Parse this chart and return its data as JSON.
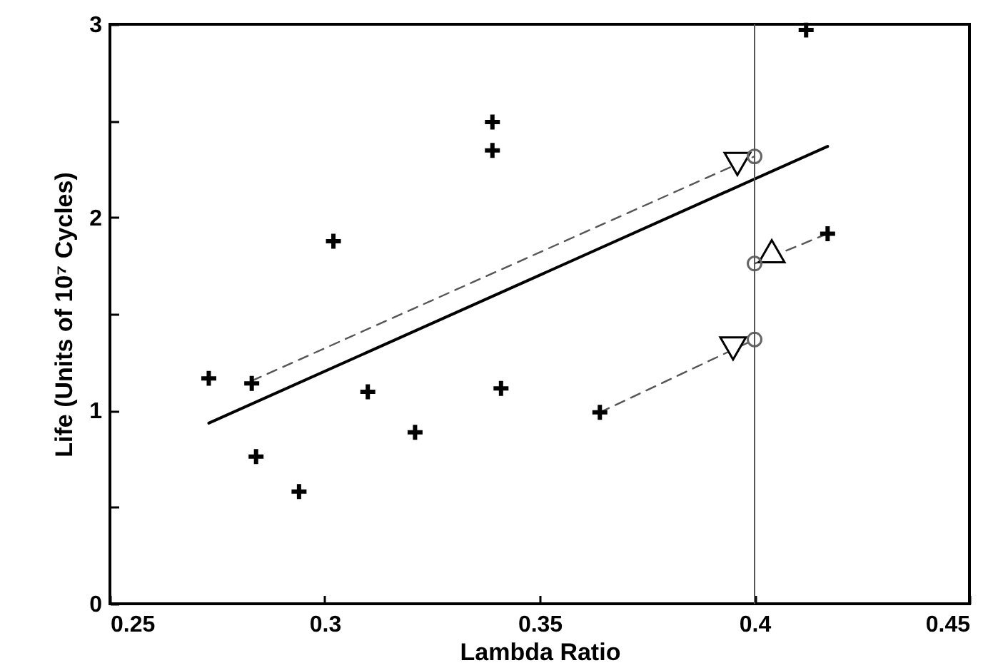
{
  "chart_data": {
    "type": "scatter",
    "xlabel": "Lambda Ratio",
    "ylabel": "Life (Units of 10⁷ Cycles)",
    "xlim": [
      0.25,
      0.45
    ],
    "xticks": [
      0.25,
      0.3,
      0.35,
      0.4,
      0.45
    ],
    "ylim": [
      0,
      3
    ],
    "yticks": [
      0,
      {
        "value": 0.5,
        "label": null
      },
      1,
      {
        "value": 1.5,
        "label": null
      },
      2,
      {
        "value": 2.5,
        "label": null
      },
      3
    ],
    "grid": false,
    "ref_lines": [
      {
        "axis": "x",
        "value": 0.4,
        "color": "#555555"
      }
    ],
    "series": [
      {
        "type": "line",
        "color": "#000000",
        "line_style": "solid",
        "x": [
          0.273,
          0.417
        ],
        "values": [
          0.935,
          2.368
        ]
      },
      {
        "type": "line",
        "color": "#555555",
        "line_style": "dashed",
        "x": [
          0.283,
          0.4
        ],
        "values": [
          1.154,
          2.316
        ]
      },
      {
        "type": "line",
        "color": "#555555",
        "line_style": "dashed",
        "x": [
          0.364,
          0.4
        ],
        "values": [
          0.991,
          1.368
        ]
      },
      {
        "type": "line",
        "color": "#555555",
        "line_style": "dashed",
        "x": [
          0.4,
          0.417
        ],
        "values": [
          1.761,
          1.916
        ]
      },
      {
        "color": "#000000",
        "marker": "cross",
        "x": [
          0.273,
          0.283,
          0.284,
          0.294,
          0.302,
          0.31,
          0.321,
          0.339,
          0.339,
          0.341,
          0.364,
          0.412,
          0.417
        ],
        "values": [
          1.167,
          1.141,
          0.762,
          0.581,
          1.877,
          1.097,
          0.888,
          2.494,
          2.347,
          1.115,
          0.991,
          2.97,
          1.916
        ]
      },
      {
        "color": "#000000",
        "marker": "triangle-down",
        "x": [
          0.396,
          0.395
        ],
        "values": [
          2.277,
          1.322
        ]
      },
      {
        "color": "#000000",
        "marker": "triangle",
        "x": [
          0.404
        ],
        "values": [
          1.825
        ]
      },
      {
        "color": "#666666",
        "marker": "circle",
        "x": [
          0.4,
          0.4,
          0.4
        ],
        "values": [
          2.316,
          1.761,
          1.368
        ]
      }
    ]
  }
}
